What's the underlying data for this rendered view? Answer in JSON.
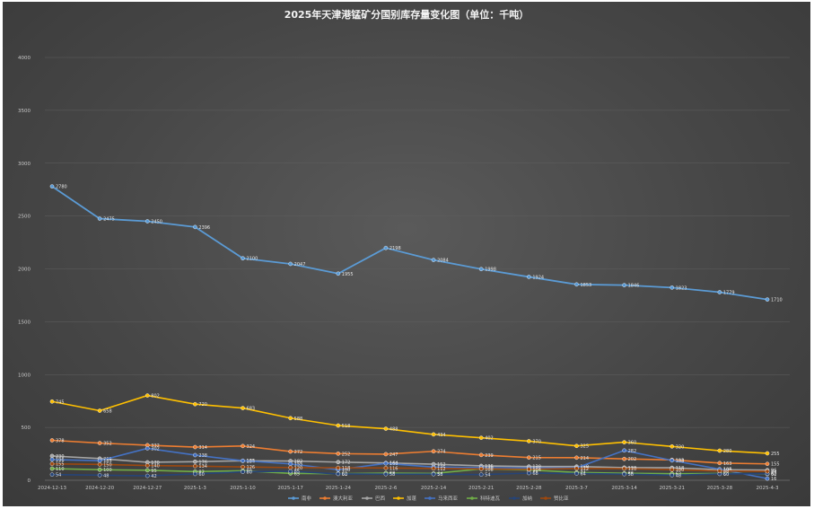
{
  "chart_data": {
    "type": "line",
    "title": "2025年天津港锰矿分国别库存量变化图（单位：千吨）",
    "xlabel": "",
    "ylabel": "",
    "ylim": [
      0,
      4000
    ],
    "yticks": [
      "0",
      "500",
      "1000",
      "1500",
      "2000",
      "2500",
      "3000",
      "3500",
      "4000"
    ],
    "grid": true,
    "legend_position": "bottom",
    "categories": [
      "2024-12-13",
      "2024-12-20",
      "2024-12-27",
      "2025-1-3",
      "2025-1-10",
      "2025-1-17",
      "2025-1-24",
      "2025-2-6",
      "2025-2-14",
      "2025-2-21",
      "2025-2-28",
      "2025-3-7",
      "2025-3-14",
      "2025-3-21",
      "2025-3-28",
      "2025-4-3"
    ],
    "series": [
      {
        "name": "南非",
        "color": "#5b9bd5",
        "values": [
          2780,
          2475,
          2450,
          2396,
          2100,
          2047,
          1955,
          2198,
          2084,
          1998,
          1924,
          1853,
          1846,
          1823,
          1779,
          1710
        ],
        "labels": [
          "2780",
          "2475",
          "2450",
          "2396",
          "2100",
          "2047",
          "1955",
          "2198",
          "2084",
          "1998",
          "1924",
          "1853",
          "1846",
          "1823",
          "1779",
          "1710"
        ]
      },
      {
        "name": "澳大利亚",
        "color": "#ed7d31",
        "values": [
          378,
          352,
          332,
          314,
          324,
          272,
          252,
          247,
          274,
          239,
          215,
          214,
          202,
          193,
          163,
          155
        ],
        "labels": [
          "378",
          "352",
          "332",
          "314",
          "324",
          "272",
          "252",
          "247",
          "274",
          "239",
          "215",
          "214",
          "202",
          "193",
          "163",
          "155"
        ]
      },
      {
        "name": "巴西",
        "color": "#a5a5a5",
        "values": [
          230,
          205,
          170,
          176,
          184,
          182,
          172,
          164,
          152,
          136,
          130,
          130,
          120,
          118,
          100,
          96
        ],
        "labels": [
          "230",
          "205",
          "170",
          "176",
          "184",
          "182",
          "172",
          "164",
          "152",
          "136",
          "130",
          "130",
          "120",
          "118",
          "100",
          "96"
        ]
      },
      {
        "name": "加蓬",
        "color": "#ffc000",
        "values": [
          745,
          658,
          802,
          720,
          683,
          588,
          518,
          488,
          434,
          402,
          370,
          325,
          360,
          320,
          280,
          255
        ],
        "labels": [
          "745",
          "658",
          "802",
          "720",
          "683",
          "588",
          "518",
          "488",
          "434",
          "402",
          "370",
          "325",
          "360",
          "320",
          "280",
          "255"
        ]
      },
      {
        "name": "马来西亚",
        "color": "#4472c4",
        "values": [
          196,
          185,
          302,
          238,
          185,
          155,
          100,
          160,
          125,
          120,
          115,
          118,
          282,
          188,
          105,
          16
        ],
        "labels": [
          "196",
          "185",
          "302",
          "238",
          "185",
          "155",
          "100",
          "160",
          "125",
          "120",
          "115",
          "118",
          "282",
          "188",
          "105",
          "16"
        ]
      },
      {
        "name": "科特迪瓦",
        "color": "#70ad47",
        "values": [
          110,
          100,
          95,
          82,
          90,
          65,
          62,
          68,
          64,
          108,
          98,
          74,
          66,
          62,
          64,
          60
        ],
        "labels": [
          "110",
          "100",
          "95",
          "82",
          "90",
          "65",
          "62",
          "68",
          "64",
          "108",
          "98",
          "74",
          "66",
          "62",
          "64",
          "60"
        ]
      },
      {
        "name": "加纳",
        "color": "#264478",
        "values": [
          54,
          48,
          42,
          60,
          80,
          85,
          60,
          58,
          58,
          54,
          68,
          64,
          58,
          48,
          60,
          62
        ],
        "labels": [
          "54",
          "48",
          "42",
          "60",
          "80",
          "85",
          "60",
          "58",
          "58",
          "54",
          "68",
          "64",
          "58",
          "48",
          "60",
          "62"
        ]
      },
      {
        "name": "赞比亚",
        "color": "#9e480e",
        "values": [
          155,
          150,
          140,
          134,
          126,
          120,
          118,
          116,
          112,
          108,
          104,
          112,
          110,
          100,
          88,
          84
        ],
        "labels": [
          "155",
          "150",
          "140",
          "134",
          "126",
          "120",
          "118",
          "116",
          "112",
          "108",
          "104",
          "112",
          "110",
          "100",
          "88",
          "84"
        ]
      }
    ]
  }
}
